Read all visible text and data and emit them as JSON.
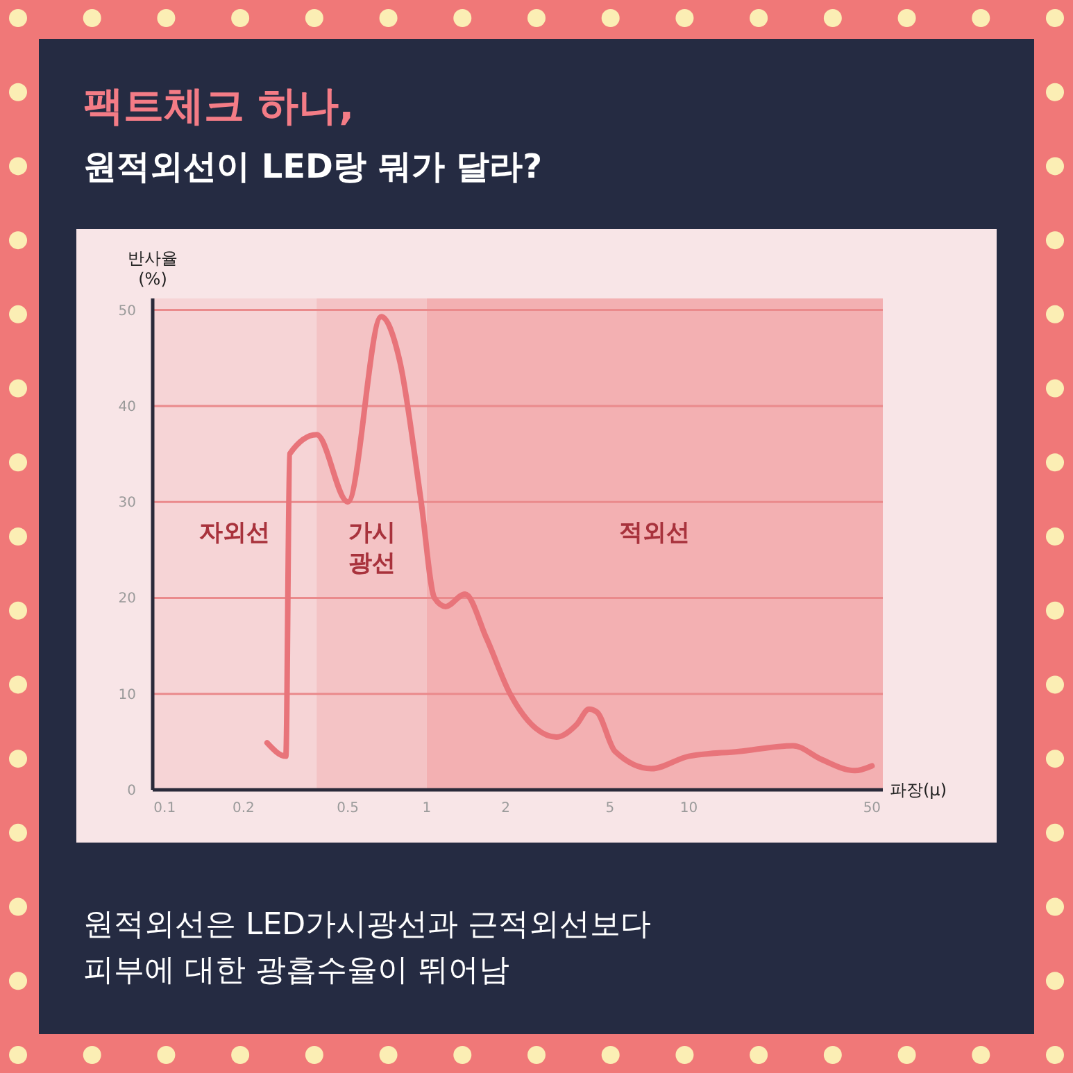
{
  "chart_data": {
    "type": "line",
    "title": "팩트체크 하나,",
    "subtitle": "원적외선이 LED랑 뭐가 달라?",
    "xlabel": "파장(μ)",
    "ylabel": "반사율\n(%)",
    "annotations": [
      "원적외선은 LED가시광선과 근적외선보다\n피부에 대한 광흡수율이 뛰어남"
    ],
    "log": "x",
    "xlim": [
      0.09,
      55
    ],
    "ylim": [
      0,
      51.2
    ],
    "xticks": [
      0.1,
      0.2,
      0.5,
      1,
      2,
      5,
      10,
      50
    ],
    "yticks": [
      0,
      10,
      20,
      30,
      40,
      50
    ],
    "grid": "y",
    "bands": [
      {
        "axis": "x",
        "from": 0.09,
        "to": 0.38,
        "label": "자외선",
        "color": "#f6d4d6"
      },
      {
        "axis": "x",
        "from": 0.38,
        "to": 1,
        "label": "가시\n광선",
        "color": "#f4c3c5"
      },
      {
        "axis": "x",
        "from": 1,
        "to": 55,
        "label": "적외선",
        "color": "#f3b0b2"
      }
    ],
    "series": [
      {
        "color": "#e8747a",
        "x": [
          0.246,
          0.29,
          0.3,
          0.38,
          0.5,
          0.67,
          0.79,
          0.95,
          1.07,
          1.18,
          1.4,
          1.69,
          2.08,
          2.61,
          3.13,
          3.73,
          4.16,
          4.46,
          5.23,
          7.2,
          10,
          15.5,
          25,
          31.9,
          43,
          50
        ],
        "values": [
          4.9,
          3.5,
          35,
          37,
          30,
          49.3,
          44.6,
          30.2,
          20,
          19.1,
          20.4,
          15.8,
          10,
          6.4,
          5.5,
          6.8,
          8.4,
          8.1,
          4,
          2.2,
          3.5,
          4,
          4.6,
          3.2,
          2,
          2.5
        ]
      }
    ]
  }
}
